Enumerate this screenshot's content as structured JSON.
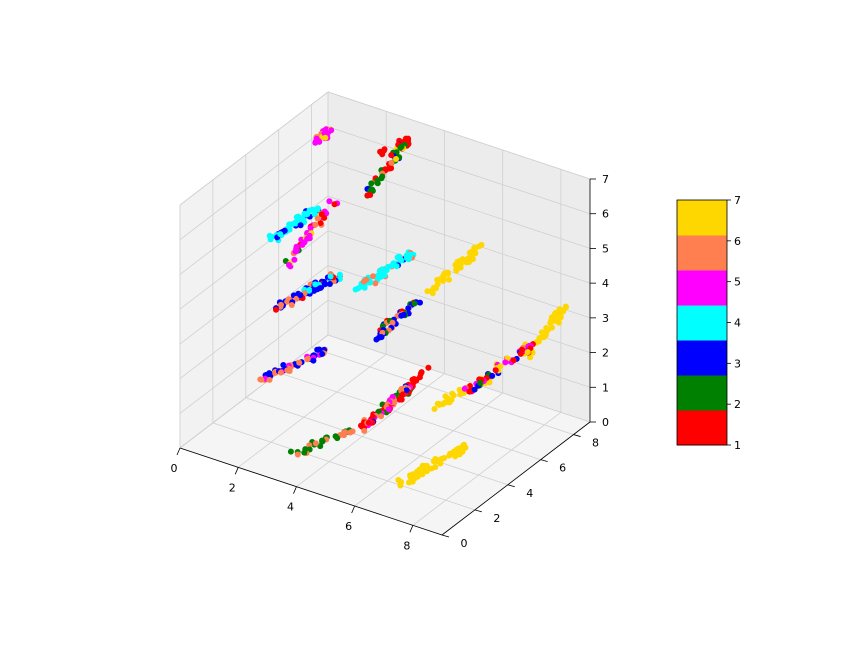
{
  "chart_data": {
    "type": "scatter",
    "projection": "3d",
    "title": "",
    "xlabel": "",
    "ylabel": "",
    "zlabel": "",
    "xlim": [
      0,
      9
    ],
    "ylim": [
      0,
      9
    ],
    "zlim": [
      0,
      7
    ],
    "x_ticks": [
      "0",
      "2",
      "4",
      "6",
      "8"
    ],
    "y_ticks": [
      "0",
      "2",
      "4",
      "6",
      "8"
    ],
    "z_ticks": [
      "0",
      "1",
      "2",
      "3",
      "4",
      "5",
      "6",
      "7"
    ],
    "grid": true,
    "colorbar": {
      "ticks": [
        "1",
        "2",
        "3",
        "4",
        "5",
        "6",
        "7"
      ],
      "colors": [
        "#ff0000",
        "#008000",
        "#0000ff",
        "#00ffff",
        "#ff00ff",
        "#ff7f50",
        "#ffd700"
      ]
    },
    "clusters": [
      {
        "x": [
          0.3,
          0.8
        ],
        "y": [
          7.5,
          8.0
        ],
        "z": [
          6.1,
          6.6
        ],
        "n": 25,
        "w": [
          0,
          0,
          0,
          0,
          8,
          1,
          1
        ]
      },
      {
        "x": [
          0.0,
          1.0
        ],
        "y": [
          5.5,
          6.5
        ],
        "z": [
          4.0,
          4.8
        ],
        "n": 50,
        "w": [
          0,
          0,
          3,
          7,
          0,
          0,
          0
        ]
      },
      {
        "x": [
          1.8,
          2.9
        ],
        "y": [
          3.3,
          4.2
        ],
        "z": [
          4.6,
          6.4
        ],
        "n": 45,
        "w": [
          2,
          1,
          0,
          0,
          6,
          1,
          1
        ]
      },
      {
        "x": [
          2.6,
          3.4
        ],
        "y": [
          6.8,
          7.8
        ],
        "z": [
          5.6,
          7.0
        ],
        "n": 55,
        "w": [
          3,
          5,
          1,
          0,
          0,
          1,
          1
        ]
      },
      {
        "x": [
          1.2,
          2.6
        ],
        "y": [
          3.8,
          5.0
        ],
        "z": [
          3.0,
          3.9
        ],
        "n": 70,
        "w": [
          1,
          0,
          5,
          3,
          0,
          2,
          0
        ]
      },
      {
        "x": [
          2.8,
          3.9
        ],
        "y": [
          6.0,
          7.2
        ],
        "z": [
          3.2,
          4.1
        ],
        "n": 55,
        "w": [
          0,
          0,
          1,
          6,
          0,
          3,
          0
        ]
      },
      {
        "x": [
          3.5,
          4.3
        ],
        "y": [
          5.6,
          6.8
        ],
        "z": [
          2.1,
          3.0
        ],
        "n": 40,
        "w": [
          1,
          1,
          6,
          0,
          0,
          2,
          0
        ]
      },
      {
        "x": [
          5.1,
          5.9
        ],
        "y": [
          6.0,
          8.0
        ],
        "z": [
          3.7,
          4.6
        ],
        "n": 45,
        "w": [
          0,
          0,
          0,
          0,
          0,
          0,
          1
        ]
      },
      {
        "x": [
          1.8,
          3.2
        ],
        "y": [
          1.8,
          3.0
        ],
        "z": [
          1.8,
          2.6
        ],
        "n": 55,
        "w": [
          0,
          0,
          5,
          0,
          1,
          3,
          0
        ]
      },
      {
        "x": [
          4.9,
          5.8
        ],
        "y": [
          2.3,
          3.8
        ],
        "z": [
          1.1,
          2.0
        ],
        "n": 75,
        "w": [
          4,
          1,
          1,
          0,
          2,
          3,
          0
        ]
      },
      {
        "x": [
          6.6,
          7.9
        ],
        "y": [
          5.7,
          7.4
        ],
        "z": [
          1.4,
          2.5
        ],
        "n": 55,
        "w": [
          4,
          1,
          1,
          0,
          3,
          1,
          2
        ]
      },
      {
        "x": [
          7.7,
          8.5
        ],
        "y": [
          7.4,
          8.4
        ],
        "z": [
          2.1,
          3.4
        ],
        "n": 45,
        "w": [
          0,
          0,
          0,
          0,
          0,
          0,
          1
        ]
      },
      {
        "x": [
          6.6,
          7.8
        ],
        "y": [
          1.6,
          3.6
        ],
        "z": [
          0.2,
          0.9
        ],
        "n": 70,
        "w": [
          0,
          0,
          0,
          0,
          0,
          0,
          1
        ]
      },
      {
        "x": [
          5.8,
          6.9
        ],
        "y": [
          5.0,
          6.6
        ],
        "z": [
          1.0,
          1.5
        ],
        "n": 35,
        "w": [
          0,
          0,
          0,
          0,
          0,
          0,
          1
        ]
      },
      {
        "x": [
          3.0,
          4.2
        ],
        "y": [
          1.5,
          3.0
        ],
        "z": [
          0.1,
          0.6
        ],
        "n": 30,
        "w": [
          0,
          5,
          0,
          0,
          0,
          3,
          0
        ]
      },
      {
        "x": [
          5.5,
          6.1
        ],
        "y": [
          4.0,
          4.7
        ],
        "z": [
          1.8,
          2.4
        ],
        "n": 15,
        "w": [
          1,
          0,
          0,
          0,
          0,
          0,
          0
        ]
      },
      {
        "x": [
          2.5,
          3.6
        ],
        "y": [
          7.6,
          8.6
        ],
        "z": [
          6.4,
          7.2
        ],
        "n": 8,
        "w": [
          1,
          0,
          0,
          0,
          0,
          0,
          0
        ]
      }
    ]
  }
}
